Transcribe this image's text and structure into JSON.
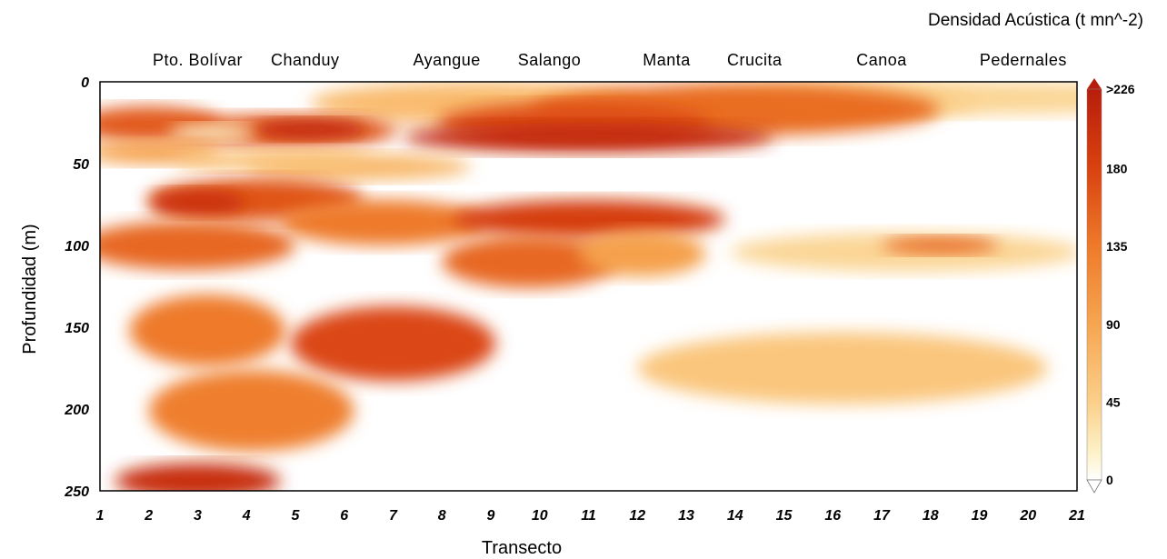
{
  "chart_data": {
    "type": "heatmap",
    "title": "",
    "xlabel": "Transecto",
    "ylabel": "Profundidad (m)",
    "xlim": [
      1,
      21
    ],
    "ylim": [
      0,
      250
    ],
    "y_inverted": true,
    "x_ticks": [
      "1",
      "2",
      "3",
      "4",
      "5",
      "6",
      "7",
      "8",
      "9",
      "10",
      "11",
      "12",
      "13",
      "14",
      "15",
      "16",
      "17",
      "18",
      "19",
      "20",
      "21"
    ],
    "y_ticks": [
      "0",
      "50",
      "100",
      "150",
      "200",
      "250"
    ],
    "locations": [
      {
        "label": "Pto. Bolívar",
        "transect": 3
      },
      {
        "label": "Chanduy",
        "transect": 5.2
      },
      {
        "label": "Ayangue",
        "transect": 8.1
      },
      {
        "label": "Salango",
        "transect": 10.2
      },
      {
        "label": "Manta",
        "transect": 12.6
      },
      {
        "label": "Crucita",
        "transect": 14.4
      },
      {
        "label": "Canoa",
        "transect": 17
      },
      {
        "label": "Pedernales",
        "transect": 19.9
      }
    ],
    "colorbar": {
      "title": "Densidad Acústica (t mn^-2)",
      "labels": [
        ">226",
        "180",
        "135",
        "90",
        "45",
        "0"
      ],
      "values": [
        226,
        180,
        135,
        90,
        45,
        0
      ],
      "colors": [
        "#b81d0c",
        "#d9410f",
        "#ee7a2a",
        "#f6a550",
        "#fbcf8a",
        "#fdf2c8",
        "#ffffff"
      ]
    },
    "grid": false,
    "blobs": [
      {
        "x": 19,
        "y": 10,
        "rx": 4.6,
        "ry": 10,
        "value": 40
      },
      {
        "x": 16,
        "y": 12,
        "rx": 3,
        "ry": 10,
        "value": 45
      },
      {
        "x": 8.7,
        "y": 13,
        "rx": 3.4,
        "ry": 13,
        "value": 65
      },
      {
        "x": 14,
        "y": 17,
        "rx": 4.2,
        "ry": 16,
        "value": 145
      },
      {
        "x": 10.7,
        "y": 25,
        "rx": 2.8,
        "ry": 12,
        "value": 170
      },
      {
        "x": 11,
        "y": 34,
        "rx": 3.8,
        "ry": 9,
        "value": 210
      },
      {
        "x": 2,
        "y": 26,
        "rx": 1.5,
        "ry": 11,
        "value": 160
      },
      {
        "x": 4.8,
        "y": 30,
        "rx": 2.3,
        "ry": 10,
        "value": 160
      },
      {
        "x": 5.3,
        "y": 29,
        "rx": 1.2,
        "ry": 6,
        "value": 210
      },
      {
        "x": 3.3,
        "y": 31,
        "rx": 0.9,
        "ry": 5,
        "value": 20
      },
      {
        "x": 2.1,
        "y": 43,
        "rx": 1.4,
        "ry": 7,
        "value": 95
      },
      {
        "x": 6.3,
        "y": 52,
        "rx": 2.3,
        "ry": 8,
        "value": 70
      },
      {
        "x": 4.5,
        "y": 48,
        "rx": 2,
        "ry": 6,
        "value": 60
      },
      {
        "x": 4.2,
        "y": 72,
        "rx": 2.2,
        "ry": 13,
        "value": 165
      },
      {
        "x": 3,
        "y": 74,
        "rx": 1,
        "ry": 8,
        "value": 200
      },
      {
        "x": 6.8,
        "y": 86,
        "rx": 2.1,
        "ry": 14,
        "value": 135
      },
      {
        "x": 2.8,
        "y": 100,
        "rx": 2.2,
        "ry": 15,
        "value": 150
      },
      {
        "x": 11,
        "y": 84,
        "rx": 2.8,
        "ry": 12,
        "value": 185
      },
      {
        "x": 9.8,
        "y": 110,
        "rx": 1.8,
        "ry": 16,
        "value": 150
      },
      {
        "x": 12.1,
        "y": 105,
        "rx": 1.3,
        "ry": 14,
        "value": 95
      },
      {
        "x": 17.5,
        "y": 104,
        "rx": 3.6,
        "ry": 12,
        "value": 40
      },
      {
        "x": 18.2,
        "y": 100,
        "rx": 1.2,
        "ry": 5,
        "value": 150
      },
      {
        "x": 3.2,
        "y": 152,
        "rx": 1.6,
        "ry": 22,
        "value": 135
      },
      {
        "x": 7,
        "y": 160,
        "rx": 2.1,
        "ry": 23,
        "value": 175
      },
      {
        "x": 4.1,
        "y": 201,
        "rx": 2.1,
        "ry": 25,
        "value": 130
      },
      {
        "x": 3,
        "y": 244,
        "rx": 1.7,
        "ry": 11,
        "value": 205
      },
      {
        "x": 16.2,
        "y": 175,
        "rx": 4.2,
        "ry": 22,
        "value": 55
      }
    ]
  }
}
